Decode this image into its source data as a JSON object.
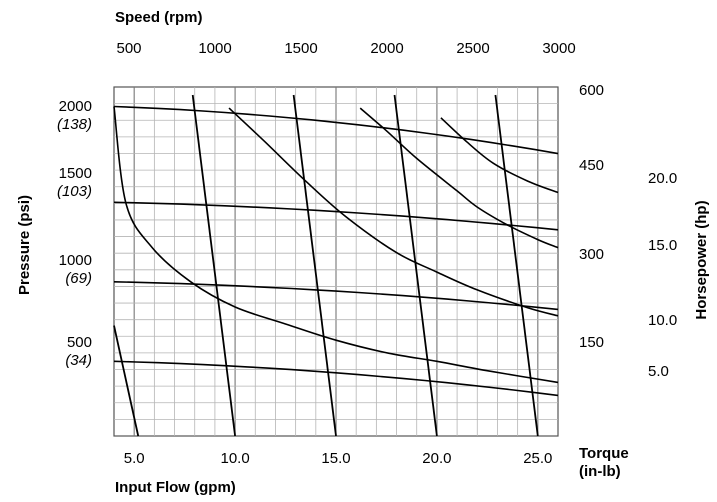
{
  "chart_data": {
    "type": "line",
    "title": "",
    "grid": true,
    "axes": {
      "speed": {
        "label": "Speed (rpm)",
        "ticks": [
          "500",
          "1000",
          "1500",
          "2000",
          "2500",
          "3000"
        ],
        "range": [
          500,
          3000
        ]
      },
      "flow": {
        "label": "Input Flow (gpm)",
        "ticks": [
          "5.0",
          "10.0",
          "15.0",
          "20.0",
          "25.0"
        ],
        "range": [
          4,
          26
        ]
      },
      "pressure": {
        "label": "Pressure (psi)",
        "ticks": [
          {
            "psi": "2000",
            "bar": "(138)",
            "value": 2000
          },
          {
            "psi": "1500",
            "bar": "(103)",
            "value": 1500
          },
          {
            "psi": "1000",
            "bar": "(69)",
            "value": 1000
          },
          {
            "psi": "500",
            "bar": "(34)",
            "value": 500
          }
        ],
        "range": [
          0,
          2150
        ]
      },
      "torque": {
        "label_line1": "Torque",
        "label_line2": "(in-lb)",
        "ticks": [
          "600",
          "450",
          "300",
          "150"
        ]
      },
      "horsepower": {
        "label": "Horsepower (hp)",
        "ticks": [
          "20.0",
          "15.0",
          "10.0",
          "5.0"
        ]
      }
    },
    "speed_lines": [
      {
        "flow_top": 7.9,
        "flow_bottom": 10.0
      },
      {
        "flow_top": 12.9,
        "flow_bottom": 15.0
      },
      {
        "flow_top": 17.9,
        "flow_bottom": 20.0
      },
      {
        "flow_top": 22.9,
        "flow_bottom": 25.0
      }
    ],
    "low_speed_line": {
      "flow_top": 4.0,
      "flow_bottom": 5.2,
      "pressure_top": 680
    },
    "flow_curves": [
      {
        "pressure_start": 2030,
        "pressure_end": 1740
      },
      {
        "pressure_start": 1440,
        "pressure_end": 1270
      },
      {
        "pressure_start": 950,
        "pressure_end": 780
      },
      {
        "pressure_start": 460,
        "pressure_end": 250
      }
    ],
    "horsepower_curves": [
      {
        "hp": 5,
        "points": [
          [
            4.0,
            2030
          ],
          [
            4.6,
            1430
          ],
          [
            5.9,
            1160
          ],
          [
            7.8,
            950
          ],
          [
            10.0,
            795
          ],
          [
            12.5,
            690
          ],
          [
            15.0,
            590
          ],
          [
            17.6,
            510
          ],
          [
            20.0,
            460
          ],
          [
            22.6,
            400
          ],
          [
            26.0,
            330
          ]
        ]
      },
      {
        "hp": 10,
        "points": [
          [
            9.7,
            2020
          ],
          [
            11.5,
            1810
          ],
          [
            13.5,
            1570
          ],
          [
            15.5,
            1350
          ],
          [
            18.0,
            1130
          ],
          [
            20.0,
            1010
          ],
          [
            22.0,
            900
          ],
          [
            24.5,
            790
          ],
          [
            26.0,
            740
          ]
        ]
      },
      {
        "hp": 15,
        "points": [
          [
            16.2,
            2020
          ],
          [
            17.5,
            1880
          ],
          [
            19.0,
            1710
          ],
          [
            21.0,
            1510
          ],
          [
            22.0,
            1410
          ],
          [
            23.5,
            1300
          ],
          [
            25.0,
            1210
          ],
          [
            26.0,
            1160
          ]
        ]
      },
      {
        "hp": 20,
        "points": [
          [
            20.2,
            1960
          ],
          [
            21.5,
            1810
          ],
          [
            22.8,
            1680
          ],
          [
            24.5,
            1570
          ],
          [
            26.0,
            1500
          ]
        ]
      }
    ]
  }
}
